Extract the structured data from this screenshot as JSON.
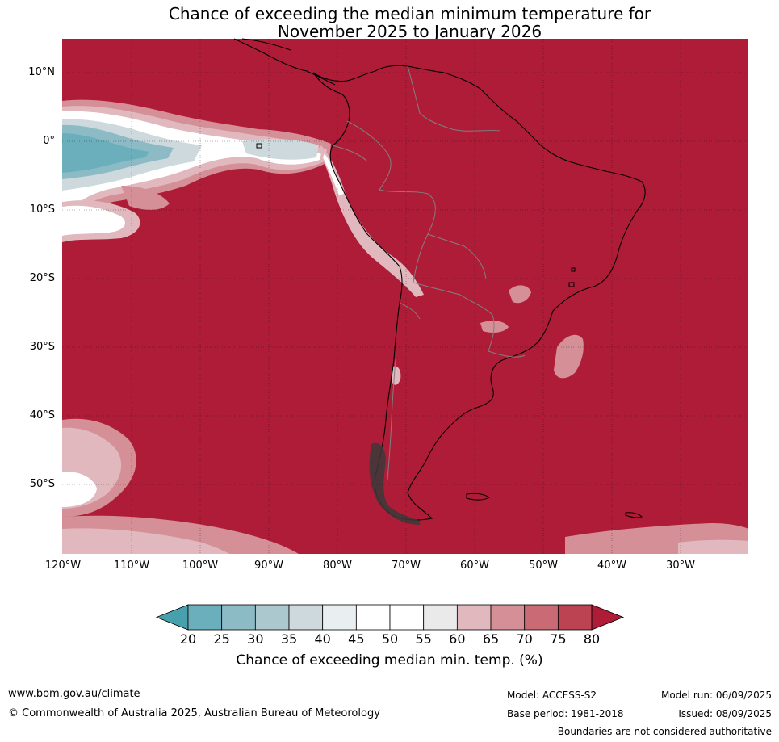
{
  "title": {
    "line1": "Chance of exceeding the median minimum temperature for",
    "line2": "November 2025 to January 2026"
  },
  "map": {
    "region": "South America and eastern Pacific",
    "lat_labels": [
      "10°N",
      "0°",
      "10°S",
      "20°S",
      "30°S",
      "40°S",
      "50°S"
    ],
    "lon_labels": [
      "120°W",
      "110°W",
      "100°W",
      "90°W",
      "80°W",
      "70°W",
      "60°W",
      "50°W",
      "40°W",
      "30°W"
    ],
    "dominant_category": "80",
    "colors": {
      "ocean_land_fill": "#ae1c38",
      "coast": "#000000",
      "borders": "#808080",
      "grid": "#000000"
    }
  },
  "colorbar": {
    "ticks": [
      "20",
      "25",
      "30",
      "35",
      "40",
      "45",
      "50",
      "55",
      "60",
      "65",
      "70",
      "75",
      "80"
    ],
    "colors": [
      "#48a0ad",
      "#6bafbc",
      "#8cbac5",
      "#abc8ce",
      "#cdd9dc",
      "#e9eff1",
      "#ffffff",
      "#ffffff",
      "#eaeaea",
      "#e1b8bd",
      "#d48f97",
      "#c96a75",
      "#bc4352",
      "#ae1c38"
    ],
    "label": "Chance of exceeding median min. temp. (%)"
  },
  "footer": {
    "website": "www.bom.gov.au/climate",
    "copyright": "© Commonwealth of Australia 2025, Australian Bureau of Meteorology",
    "model": "Model: ACCESS-S2",
    "base_period": "Base period: 1981-2018",
    "model_run": "Model run: 06/09/2025",
    "issued": "Issued: 08/09/2025",
    "disclaimer": "Boundaries are not considered authoritative"
  }
}
